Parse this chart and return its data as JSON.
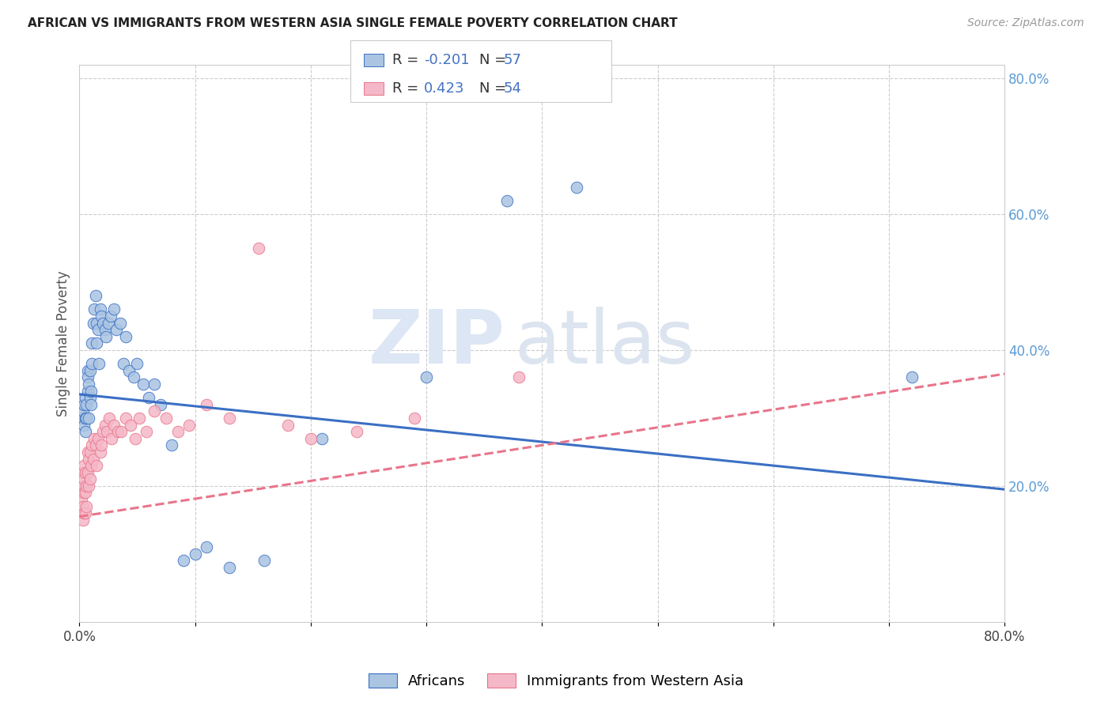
{
  "title": "AFRICAN VS IMMIGRANTS FROM WESTERN ASIA SINGLE FEMALE POVERTY CORRELATION CHART",
  "source": "Source: ZipAtlas.com",
  "ylabel": "Single Female Poverty",
  "x_min": 0.0,
  "x_max": 0.8,
  "y_min": 0.0,
  "y_max": 0.82,
  "y_ticks_right": [
    0.2,
    0.4,
    0.6,
    0.8
  ],
  "y_tick_labels_right": [
    "20.0%",
    "40.0%",
    "60.0%",
    "80.0%"
  ],
  "africans_color": "#aac4e2",
  "western_asia_color": "#f5b8c8",
  "line_blue_color": "#3b6fc4",
  "line_pink_color": "#e8758a",
  "blue_line_x0": 0.0,
  "blue_line_y0": 0.335,
  "blue_line_x1": 0.8,
  "blue_line_y1": 0.195,
  "pink_line_x0": 0.0,
  "pink_line_y0": 0.155,
  "pink_line_x1": 0.8,
  "pink_line_y1": 0.365,
  "africans_x": [
    0.002,
    0.003,
    0.004,
    0.004,
    0.005,
    0.005,
    0.005,
    0.006,
    0.006,
    0.007,
    0.007,
    0.007,
    0.008,
    0.008,
    0.009,
    0.009,
    0.01,
    0.01,
    0.011,
    0.011,
    0.012,
    0.013,
    0.014,
    0.015,
    0.015,
    0.016,
    0.017,
    0.018,
    0.019,
    0.02,
    0.022,
    0.023,
    0.025,
    0.027,
    0.03,
    0.032,
    0.035,
    0.038,
    0.04,
    0.043,
    0.047,
    0.05,
    0.055,
    0.06,
    0.065,
    0.07,
    0.08,
    0.09,
    0.1,
    0.11,
    0.13,
    0.16,
    0.21,
    0.3,
    0.37,
    0.43,
    0.72
  ],
  "africans_y": [
    0.3,
    0.31,
    0.29,
    0.32,
    0.33,
    0.3,
    0.28,
    0.32,
    0.3,
    0.34,
    0.37,
    0.36,
    0.35,
    0.3,
    0.33,
    0.37,
    0.32,
    0.34,
    0.38,
    0.41,
    0.44,
    0.46,
    0.48,
    0.41,
    0.44,
    0.43,
    0.38,
    0.46,
    0.45,
    0.44,
    0.43,
    0.42,
    0.44,
    0.45,
    0.46,
    0.43,
    0.44,
    0.38,
    0.42,
    0.37,
    0.36,
    0.38,
    0.35,
    0.33,
    0.35,
    0.32,
    0.26,
    0.09,
    0.1,
    0.11,
    0.08,
    0.09,
    0.27,
    0.36,
    0.62,
    0.64,
    0.36
  ],
  "western_asia_x": [
    0.002,
    0.002,
    0.003,
    0.003,
    0.003,
    0.004,
    0.004,
    0.004,
    0.004,
    0.005,
    0.005,
    0.005,
    0.006,
    0.006,
    0.007,
    0.007,
    0.008,
    0.008,
    0.009,
    0.009,
    0.01,
    0.011,
    0.012,
    0.013,
    0.014,
    0.015,
    0.016,
    0.018,
    0.019,
    0.02,
    0.022,
    0.024,
    0.026,
    0.028,
    0.03,
    0.033,
    0.036,
    0.04,
    0.044,
    0.048,
    0.052,
    0.058,
    0.065,
    0.075,
    0.085,
    0.095,
    0.11,
    0.13,
    0.155,
    0.18,
    0.2,
    0.24,
    0.29,
    0.38
  ],
  "western_asia_y": [
    0.18,
    0.22,
    0.15,
    0.17,
    0.2,
    0.16,
    0.19,
    0.21,
    0.23,
    0.16,
    0.19,
    0.22,
    0.17,
    0.2,
    0.22,
    0.25,
    0.2,
    0.24,
    0.21,
    0.25,
    0.23,
    0.26,
    0.24,
    0.27,
    0.26,
    0.23,
    0.27,
    0.25,
    0.26,
    0.28,
    0.29,
    0.28,
    0.3,
    0.27,
    0.29,
    0.28,
    0.28,
    0.3,
    0.29,
    0.27,
    0.3,
    0.28,
    0.31,
    0.3,
    0.28,
    0.29,
    0.32,
    0.3,
    0.55,
    0.29,
    0.27,
    0.28,
    0.3,
    0.36
  ]
}
